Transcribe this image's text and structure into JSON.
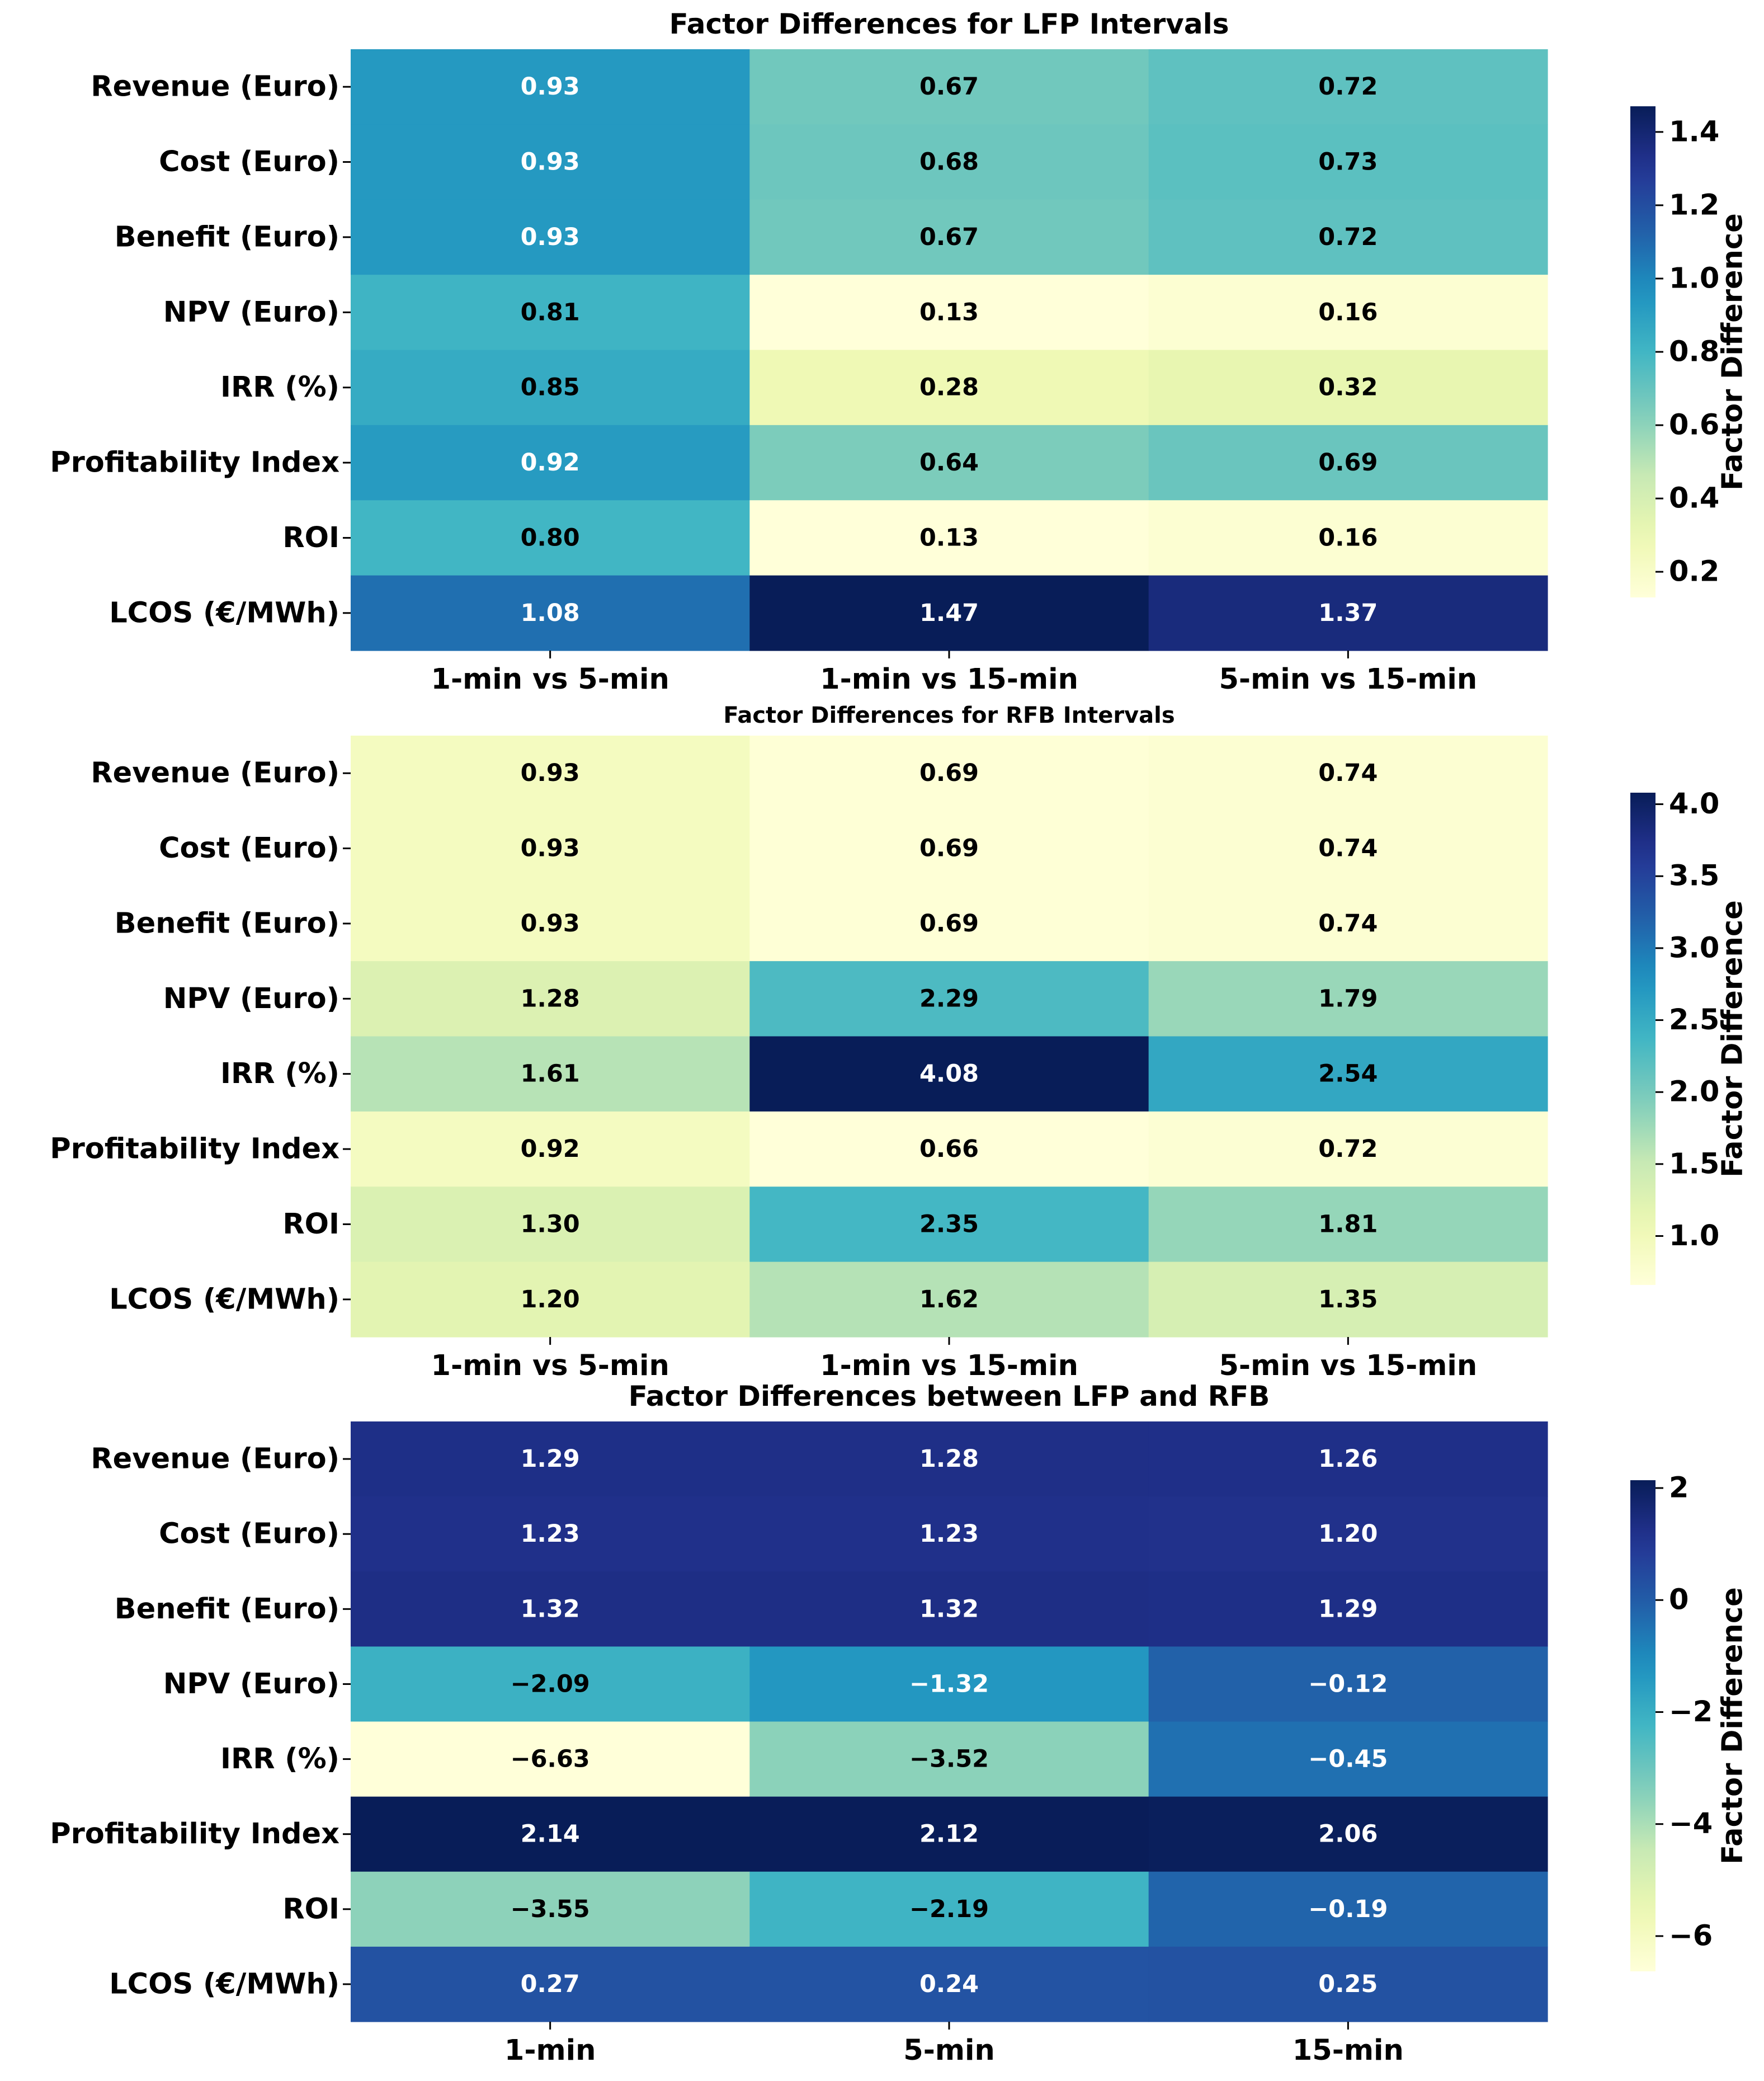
{
  "chart_data": [
    {
      "type": "heatmap",
      "title": "Factor Differences for LFP Intervals",
      "rows": [
        "Revenue (Euro)",
        "Cost (Euro)",
        "Benefit (Euro)",
        "NPV (Euro)",
        "IRR (%)",
        "Profitability Index",
        "ROI",
        "LCOS (€/MWh)"
      ],
      "columns": [
        "1-min vs 5-min",
        "1-min vs 15-min",
        "5-min vs 15-min"
      ],
      "values": [
        [
          0.93,
          0.67,
          0.72
        ],
        [
          0.93,
          0.68,
          0.73
        ],
        [
          0.93,
          0.67,
          0.72
        ],
        [
          0.81,
          0.13,
          0.16
        ],
        [
          0.85,
          0.28,
          0.32
        ],
        [
          0.92,
          0.64,
          0.69
        ],
        [
          0.8,
          0.13,
          0.16
        ],
        [
          1.08,
          1.47,
          1.37
        ]
      ],
      "labels": [
        [
          "0.93",
          "0.67",
          "0.72"
        ],
        [
          "0.93",
          "0.68",
          "0.73"
        ],
        [
          "0.93",
          "0.67",
          "0.72"
        ],
        [
          "0.81",
          "0.13",
          "0.16"
        ],
        [
          "0.85",
          "0.28",
          "0.32"
        ],
        [
          "0.92",
          "0.64",
          "0.69"
        ],
        [
          "0.80",
          "0.13",
          "0.16"
        ],
        [
          "1.08",
          "1.47",
          "1.37"
        ]
      ],
      "colorbar": {
        "label": "Factor Difference",
        "vmin": 0.13,
        "vmax": 1.47,
        "ticks": [
          0.2,
          0.4,
          0.6,
          0.8,
          1.0,
          1.2,
          1.4
        ],
        "tick_labels": [
          "0.2",
          "0.4",
          "0.6",
          "0.8",
          "1.0",
          "1.2",
          "1.4"
        ]
      },
      "colormap": "YlGnBu"
    },
    {
      "type": "heatmap",
      "title": "Factor Differences for RFB Intervals",
      "rows": [
        "Revenue (Euro)",
        "Cost (Euro)",
        "Benefit (Euro)",
        "NPV (Euro)",
        "IRR (%)",
        "Profitability Index",
        "ROI",
        "LCOS (€/MWh)"
      ],
      "columns": [
        "1-min vs 5-min",
        "1-min vs 15-min",
        "5-min vs 15-min"
      ],
      "values": [
        [
          0.93,
          0.69,
          0.74
        ],
        [
          0.93,
          0.69,
          0.74
        ],
        [
          0.93,
          0.69,
          0.74
        ],
        [
          1.28,
          2.29,
          1.79
        ],
        [
          1.61,
          4.08,
          2.54
        ],
        [
          0.92,
          0.66,
          0.72
        ],
        [
          1.3,
          2.35,
          1.81
        ],
        [
          1.2,
          1.62,
          1.35
        ]
      ],
      "labels": [
        [
          "0.93",
          "0.69",
          "0.74"
        ],
        [
          "0.93",
          "0.69",
          "0.74"
        ],
        [
          "0.93",
          "0.69",
          "0.74"
        ],
        [
          "1.28",
          "2.29",
          "1.79"
        ],
        [
          "1.61",
          "4.08",
          "2.54"
        ],
        [
          "0.92",
          "0.66",
          "0.72"
        ],
        [
          "1.30",
          "2.35",
          "1.81"
        ],
        [
          "1.20",
          "1.62",
          "1.35"
        ]
      ],
      "colorbar": {
        "label": "Factor Difference",
        "vmin": 0.66,
        "vmax": 4.08,
        "ticks": [
          1.0,
          1.5,
          2.0,
          2.5,
          3.0,
          3.5,
          4.0
        ],
        "tick_labels": [
          "1.0",
          "1.5",
          "2.0",
          "2.5",
          "3.0",
          "3.5",
          "4.0"
        ]
      },
      "colormap": "YlGnBu"
    },
    {
      "type": "heatmap",
      "title": "Factor Differences between LFP and RFB",
      "rows": [
        "Revenue (Euro)",
        "Cost (Euro)",
        "Benefit (Euro)",
        "NPV (Euro)",
        "IRR (%)",
        "Profitability Index",
        "ROI",
        "LCOS (€/MWh)"
      ],
      "columns": [
        "1-min",
        "5-min",
        "15-min"
      ],
      "values": [
        [
          1.29,
          1.28,
          1.26
        ],
        [
          1.23,
          1.23,
          1.2
        ],
        [
          1.32,
          1.32,
          1.29
        ],
        [
          -2.09,
          -1.32,
          -0.12
        ],
        [
          -6.63,
          -3.52,
          -0.45
        ],
        [
          2.14,
          2.12,
          2.06
        ],
        [
          -3.55,
          -2.19,
          -0.19
        ],
        [
          0.27,
          0.24,
          0.25
        ]
      ],
      "labels": [
        [
          "1.29",
          "1.28",
          "1.26"
        ],
        [
          "1.23",
          "1.23",
          "1.20"
        ],
        [
          "1.32",
          "1.32",
          "1.29"
        ],
        [
          "−2.09",
          "−1.32",
          "−0.12"
        ],
        [
          "−6.63",
          "−3.52",
          "−0.45"
        ],
        [
          "2.14",
          "2.12",
          "2.06"
        ],
        [
          "−3.55",
          "−2.19",
          "−0.19"
        ],
        [
          "0.27",
          "0.24",
          "0.25"
        ]
      ],
      "colorbar": {
        "label": "Factor Difference",
        "vmin": -6.63,
        "vmax": 2.14,
        "ticks": [
          -6,
          -4,
          -2,
          0,
          2
        ],
        "tick_labels": [
          "−6",
          "−4",
          "−2",
          "0",
          "2"
        ]
      },
      "colormap": "YlGnBu"
    }
  ]
}
